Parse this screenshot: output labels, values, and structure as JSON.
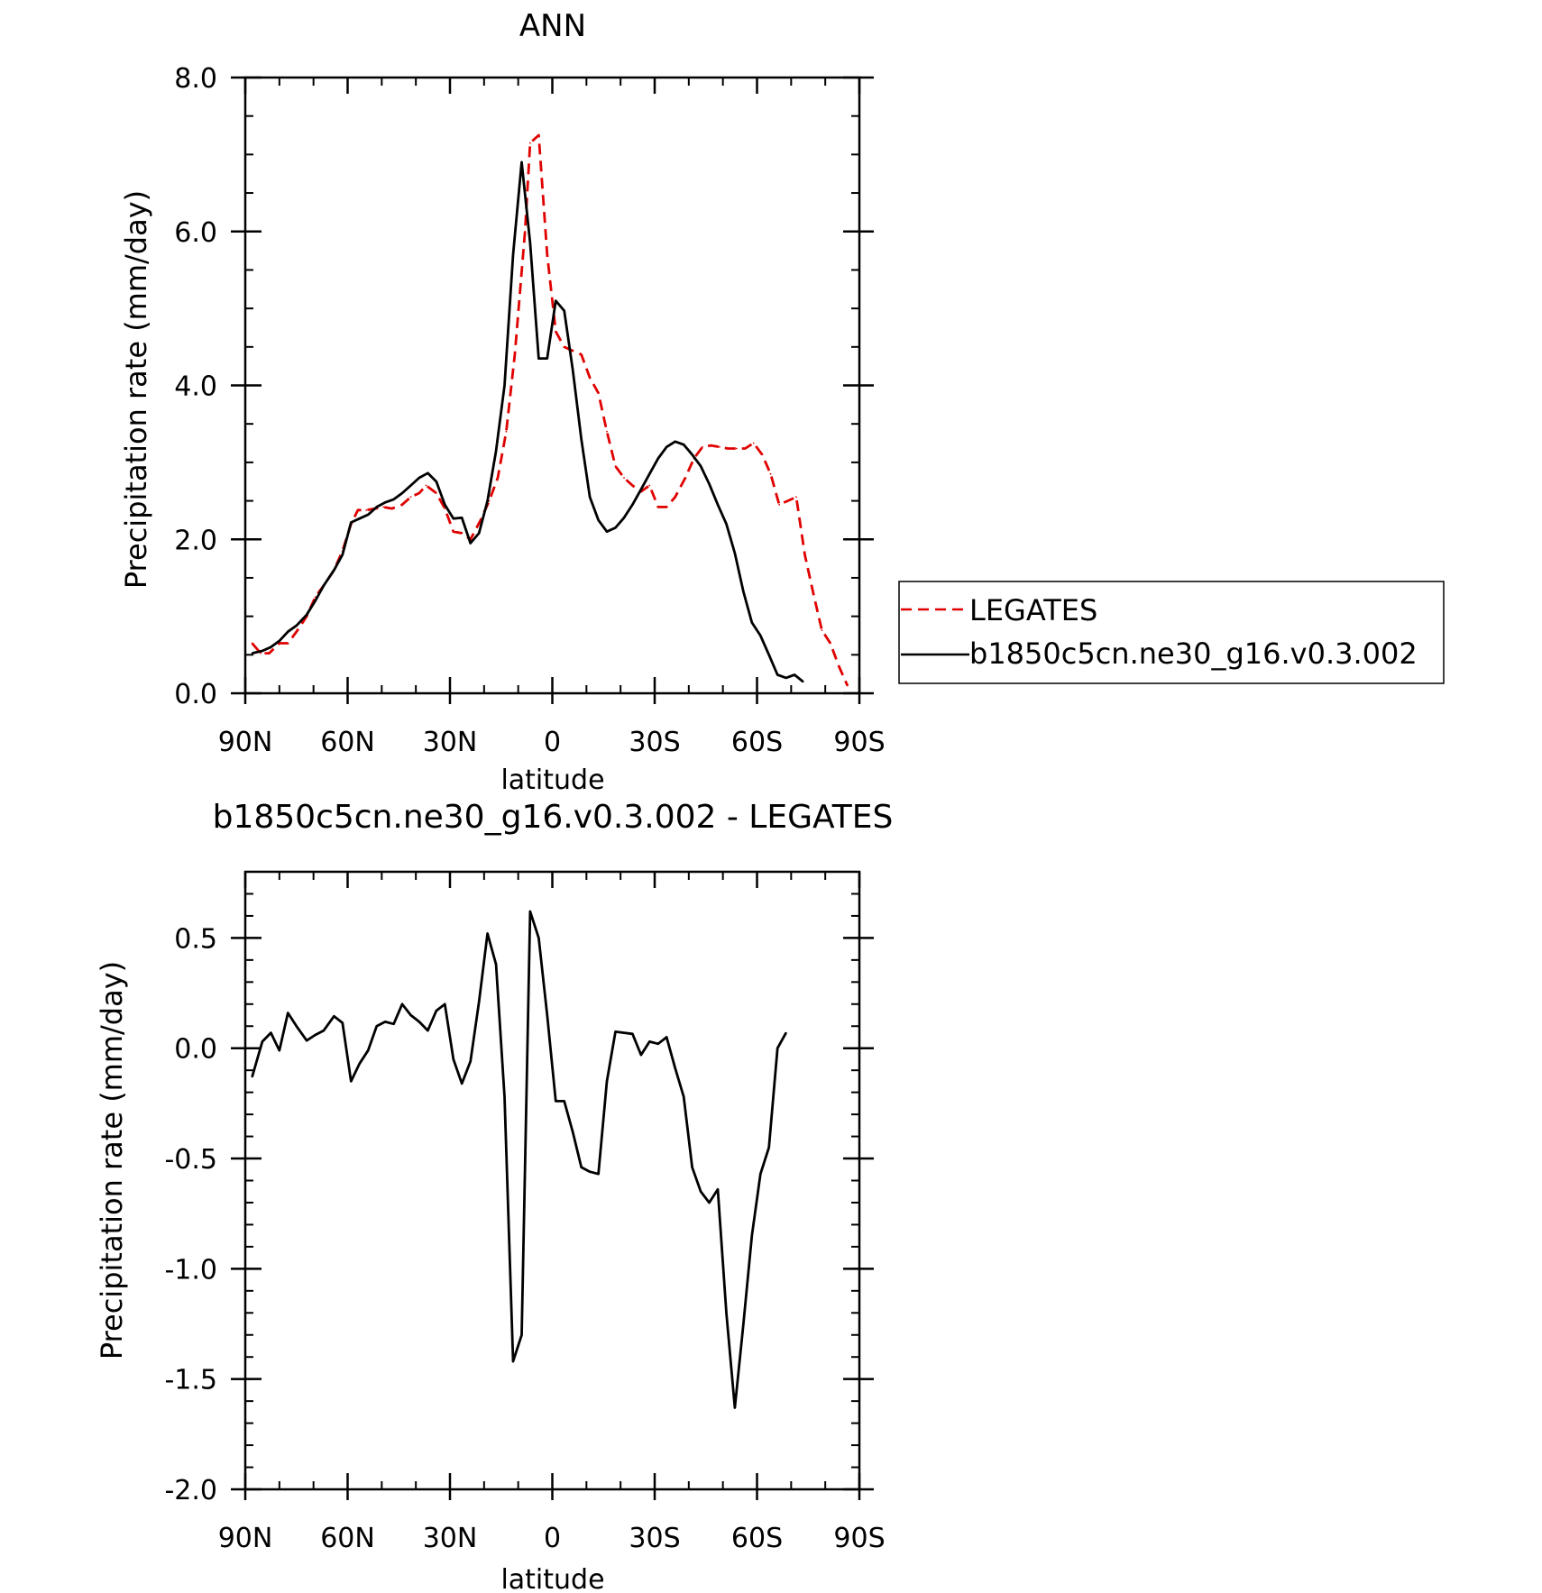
{
  "colors": {
    "obs": "#e00000",
    "model": "#000000",
    "axis": "#000000"
  },
  "chart_data": [
    {
      "type": "line",
      "title": "ANN",
      "xlabel": "latitude",
      "ylabel": "Precipitation rate (mm/day)",
      "xlim": [
        90,
        -90
      ],
      "ylim": [
        0,
        8
      ],
      "x_ticks": [
        {
          "value": 90,
          "label": "90N"
        },
        {
          "value": 60,
          "label": "60N"
        },
        {
          "value": 30,
          "label": "30N"
        },
        {
          "value": 0,
          "label": "0"
        },
        {
          "value": -30,
          "label": "30S"
        },
        {
          "value": -60,
          "label": "60S"
        },
        {
          "value": -90,
          "label": "90S"
        }
      ],
      "y_ticks": [
        {
          "value": 0,
          "label": "0.0"
        },
        {
          "value": 2,
          "label": "2.0"
        },
        {
          "value": 4,
          "label": "4.0"
        },
        {
          "value": 6,
          "label": "6.0"
        },
        {
          "value": 8,
          "label": "8.0"
        }
      ],
      "legend": {
        "position": "right",
        "entries": [
          {
            "label": "LEGATES",
            "style": "dashed",
            "color": "#e00000"
          },
          {
            "label": "b1850c5cn.ne30_g16.v0.3.002",
            "style": "solid",
            "color": "#000000"
          }
        ]
      },
      "series": [
        {
          "name": "LEGATES",
          "color": "#e00000",
          "dash": true,
          "points": [
            [
              88,
              0.65
            ],
            [
              85.5,
              0.52
            ],
            [
              83,
              0.52
            ],
            [
              80,
              0.65
            ],
            [
              77.5,
              0.65
            ],
            [
              75,
              0.8
            ],
            [
              72,
              1.0
            ],
            [
              69.5,
              1.25
            ],
            [
              67,
              1.4
            ],
            [
              64,
              1.6
            ],
            [
              61.5,
              1.85
            ],
            [
              59,
              2.2
            ],
            [
              57,
              2.38
            ],
            [
              54.5,
              2.38
            ],
            [
              52,
              2.4
            ],
            [
              49.5,
              2.42
            ],
            [
              47,
              2.4
            ],
            [
              44,
              2.45
            ],
            [
              41.5,
              2.55
            ],
            [
              39,
              2.6
            ],
            [
              37,
              2.7
            ],
            [
              34,
              2.6
            ],
            [
              31.5,
              2.4
            ],
            [
              29,
              2.1
            ],
            [
              26.5,
              2.08
            ],
            [
              24,
              2.0
            ],
            [
              21,
              2.25
            ],
            [
              18.5,
              2.5
            ],
            [
              16,
              2.8
            ],
            [
              13.5,
              3.4
            ],
            [
              11,
              4.4
            ],
            [
              8,
              6.0
            ],
            [
              6.5,
              7.15
            ],
            [
              4,
              7.25
            ],
            [
              1.5,
              5.7
            ],
            [
              -1,
              4.7
            ],
            [
              -3.5,
              4.5
            ],
            [
              -6,
              4.45
            ],
            [
              -8.5,
              4.4
            ],
            [
              -11,
              4.1
            ],
            [
              -13.5,
              3.9
            ],
            [
              -16,
              3.4
            ],
            [
              -18.5,
              2.95
            ],
            [
              -21,
              2.8
            ],
            [
              -23.5,
              2.7
            ],
            [
              -26,
              2.62
            ],
            [
              -28.5,
              2.7
            ],
            [
              -31,
              2.42
            ],
            [
              -33.5,
              2.42
            ],
            [
              -36,
              2.55
            ],
            [
              -39,
              2.8
            ],
            [
              -41.5,
              3.05
            ],
            [
              -44,
              3.2
            ],
            [
              -46.5,
              3.22
            ],
            [
              -49,
              3.2
            ],
            [
              -51.5,
              3.18
            ],
            [
              -54,
              3.18
            ],
            [
              -56.5,
              3.18
            ],
            [
              -59,
              3.25
            ],
            [
              -61.5,
              3.1
            ],
            [
              -64,
              2.85
            ],
            [
              -66.5,
              2.45
            ],
            [
              -69,
              2.5
            ],
            [
              -71.5,
              2.55
            ],
            [
              -74,
              1.8
            ],
            [
              -76.5,
              1.3
            ],
            [
              -79,
              0.82
            ],
            [
              -81.5,
              0.65
            ],
            [
              -84,
              0.35
            ],
            [
              -86.5,
              0.1
            ]
          ]
        },
        {
          "name": "b1850c5cn.ne30_g16.v0.3.002",
          "color": "#000000",
          "dash": false,
          "points": [
            [
              88,
              0.52
            ],
            [
              85,
              0.55
            ],
            [
              82.5,
              0.6
            ],
            [
              80,
              0.68
            ],
            [
              77.5,
              0.8
            ],
            [
              75,
              0.88
            ],
            [
              72,
              1.02
            ],
            [
              69.5,
              1.2
            ],
            [
              67,
              1.4
            ],
            [
              64,
              1.6
            ],
            [
              61.5,
              1.8
            ],
            [
              59,
              2.22
            ],
            [
              56.5,
              2.27
            ],
            [
              54,
              2.32
            ],
            [
              51.5,
              2.42
            ],
            [
              49,
              2.48
            ],
            [
              46.5,
              2.52
            ],
            [
              44,
              2.6
            ],
            [
              41.5,
              2.7
            ],
            [
              39,
              2.8
            ],
            [
              36.5,
              2.86
            ],
            [
              34,
              2.75
            ],
            [
              31.5,
              2.45
            ],
            [
              29,
              2.27
            ],
            [
              26.5,
              2.28
            ],
            [
              24,
              1.95
            ],
            [
              21.5,
              2.08
            ],
            [
              19,
              2.5
            ],
            [
              16.5,
              3.15
            ],
            [
              14,
              4.0
            ],
            [
              11.5,
              5.7
            ],
            [
              9,
              6.9
            ],
            [
              6.5,
              5.85
            ],
            [
              4,
              4.35
            ],
            [
              1.5,
              4.35
            ],
            [
              -1,
              5.1
            ],
            [
              -3.5,
              4.97
            ],
            [
              -6,
              4.2
            ],
            [
              -8.5,
              3.3
            ],
            [
              -11,
              2.55
            ],
            [
              -13.5,
              2.25
            ],
            [
              -16,
              2.1
            ],
            [
              -18.5,
              2.15
            ],
            [
              -21,
              2.28
            ],
            [
              -23.5,
              2.45
            ],
            [
              -26,
              2.65
            ],
            [
              -28.5,
              2.85
            ],
            [
              -31,
              3.05
            ],
            [
              -33.5,
              3.2
            ],
            [
              -36,
              3.27
            ],
            [
              -38.5,
              3.23
            ],
            [
              -41,
              3.1
            ],
            [
              -43.5,
              2.95
            ],
            [
              -46,
              2.72
            ],
            [
              -48.5,
              2.45
            ],
            [
              -51,
              2.2
            ],
            [
              -53.5,
              1.82
            ],
            [
              -56,
              1.32
            ],
            [
              -58.5,
              0.92
            ],
            [
              -61,
              0.75
            ],
            [
              -63.5,
              0.5
            ],
            [
              -66,
              0.24
            ],
            [
              -68.5,
              0.2
            ],
            [
              -71,
              0.24
            ],
            [
              -73.5,
              0.15
            ]
          ]
        }
      ]
    },
    {
      "type": "line",
      "title": "b1850c5cn.ne30_g16.v0.3.002 - LEGATES",
      "xlabel": "latitude",
      "ylabel": "Precipitation rate (mm/day)",
      "xlim": [
        90,
        -90
      ],
      "ylim": [
        -2.0,
        0.8
      ],
      "x_ticks": [
        {
          "value": 90,
          "label": "90N"
        },
        {
          "value": 60,
          "label": "60N"
        },
        {
          "value": 30,
          "label": "30N"
        },
        {
          "value": 0,
          "label": "0"
        },
        {
          "value": -30,
          "label": "30S"
        },
        {
          "value": -60,
          "label": "60S"
        },
        {
          "value": -90,
          "label": "90S"
        }
      ],
      "y_ticks": [
        {
          "value": 0.5,
          "label": "0.5"
        },
        {
          "value": 0,
          "label": "0.0"
        },
        {
          "value": -0.5,
          "label": "-0.5"
        },
        {
          "value": -1.0,
          "label": "-1.0"
        },
        {
          "value": -1.5,
          "label": "-1.5"
        },
        {
          "value": -2.0,
          "label": "-2.0"
        }
      ],
      "series": [
        {
          "name": "",
          "color": "#000000",
          "dash": false,
          "points": [
            [
              88,
              -0.13
            ],
            [
              85,
              0.03
            ],
            [
              82.5,
              0.07
            ],
            [
              80,
              -0.01
            ],
            [
              77.5,
              0.16
            ],
            [
              75,
              0.1
            ],
            [
              72,
              0.035
            ],
            [
              69.5,
              0.06
            ],
            [
              67,
              0.08
            ],
            [
              64,
              0.145
            ],
            [
              61.5,
              0.115
            ],
            [
              59,
              -0.15
            ],
            [
              56.5,
              -0.07
            ],
            [
              54,
              -0.01
            ],
            [
              51.5,
              0.1
            ],
            [
              49,
              0.12
            ],
            [
              46.5,
              0.11
            ],
            [
              44,
              0.2
            ],
            [
              41.5,
              0.15
            ],
            [
              39,
              0.12
            ],
            [
              36.5,
              0.08
            ],
            [
              34,
              0.17
            ],
            [
              31.5,
              0.2
            ],
            [
              29,
              -0.05
            ],
            [
              26.5,
              -0.16
            ],
            [
              24,
              -0.06
            ],
            [
              21.5,
              0.21
            ],
            [
              19,
              0.52
            ],
            [
              16.5,
              0.38
            ],
            [
              14,
              -0.22
            ],
            [
              11.5,
              -1.42
            ],
            [
              9,
              -1.3
            ],
            [
              6.5,
              0.62
            ],
            [
              4,
              0.5
            ],
            [
              1.5,
              0.15
            ],
            [
              -1,
              -0.24
            ],
            [
              -3.5,
              -0.24
            ],
            [
              -6,
              -0.38
            ],
            [
              -8.5,
              -0.54
            ],
            [
              -11,
              -0.56
            ],
            [
              -13.5,
              -0.57
            ],
            [
              -16,
              -0.15
            ],
            [
              -18.5,
              0.075
            ],
            [
              -21,
              0.07
            ],
            [
              -23.5,
              0.065
            ],
            [
              -26,
              -0.03
            ],
            [
              -28.5,
              0.03
            ],
            [
              -31,
              0.02
            ],
            [
              -33.5,
              0.05
            ],
            [
              -36,
              -0.09
            ],
            [
              -38.5,
              -0.22
            ],
            [
              -41,
              -0.54
            ],
            [
              -43.5,
              -0.65
            ],
            [
              -46,
              -0.7
            ],
            [
              -48.5,
              -0.64
            ],
            [
              -51,
              -1.2
            ],
            [
              -53.5,
              -1.63
            ],
            [
              -56,
              -1.25
            ],
            [
              -58.5,
              -0.85
            ],
            [
              -61,
              -0.57
            ],
            [
              -63.5,
              -0.45
            ],
            [
              -66,
              0.0
            ],
            [
              -68.5,
              0.07
            ]
          ]
        }
      ]
    }
  ]
}
